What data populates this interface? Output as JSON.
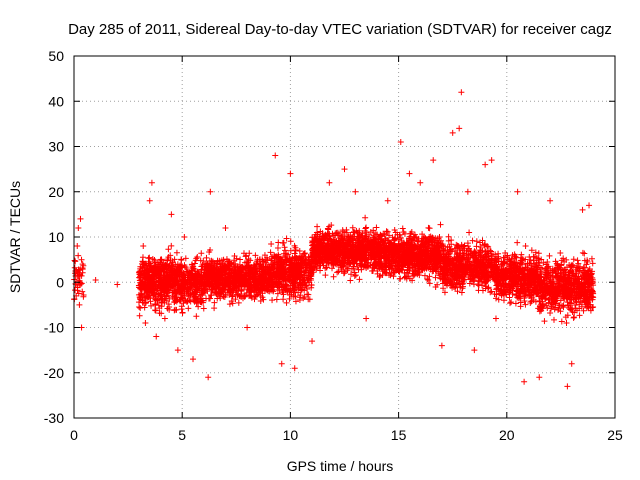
{
  "chart_data": {
    "type": "scatter",
    "title": "Day 285 of 2011, Sidereal Day-to-day VTEC variation (SDTVAR) for receiver cagz",
    "xlabel": "GPS time / hours",
    "ylabel": "SDTVAR / TECUs",
    "xlim": [
      0,
      25
    ],
    "ylim": [
      -30,
      50
    ],
    "xticks": [
      0,
      5,
      10,
      15,
      20,
      25
    ],
    "yticks": [
      -30,
      -20,
      -10,
      0,
      10,
      20,
      30,
      40,
      50
    ],
    "grid": true,
    "marker": "+",
    "color": "#ff0000",
    "series": [
      {
        "name": "SDTVAR",
        "points": [
          [
            0.05,
            2
          ],
          [
            0.1,
            -3
          ],
          [
            0.15,
            8
          ],
          [
            0.2,
            12
          ],
          [
            0.25,
            -5
          ],
          [
            0.3,
            14
          ],
          [
            0.35,
            -10
          ],
          [
            0.4,
            4
          ],
          [
            3.2,
            8
          ],
          [
            3.3,
            -9
          ],
          [
            3.5,
            18
          ],
          [
            3.6,
            22
          ],
          [
            3.8,
            -12
          ],
          [
            4.0,
            5
          ],
          [
            4.2,
            -8
          ],
          [
            4.5,
            15
          ],
          [
            4.8,
            -15
          ],
          [
            5.1,
            10
          ],
          [
            5.5,
            -17
          ],
          [
            6.2,
            -21
          ],
          [
            6.3,
            20
          ],
          [
            7.0,
            12
          ],
          [
            8.0,
            -10
          ],
          [
            9.3,
            28
          ],
          [
            9.6,
            -18
          ],
          [
            10.0,
            24
          ],
          [
            10.2,
            -19
          ],
          [
            11.0,
            -13
          ],
          [
            11.8,
            22
          ],
          [
            12.5,
            25
          ],
          [
            13.0,
            20
          ],
          [
            13.5,
            -8
          ],
          [
            14.5,
            18
          ],
          [
            15.1,
            31
          ],
          [
            15.5,
            24
          ],
          [
            16.0,
            22
          ],
          [
            16.6,
            27
          ],
          [
            17.0,
            -14
          ],
          [
            17.5,
            33
          ],
          [
            17.8,
            34
          ],
          [
            17.9,
            42
          ],
          [
            18.2,
            20
          ],
          [
            18.5,
            -15
          ],
          [
            19.0,
            26
          ],
          [
            19.3,
            27
          ],
          [
            19.5,
            -8
          ],
          [
            20.5,
            20
          ],
          [
            20.8,
            -22
          ],
          [
            21.5,
            -21
          ],
          [
            22.0,
            18
          ],
          [
            22.8,
            -23
          ],
          [
            23.0,
            -18
          ],
          [
            23.5,
            16
          ],
          [
            23.8,
            17
          ],
          [
            1.0,
            0.5
          ],
          [
            2.0,
            -0.5
          ]
        ]
      }
    ],
    "density_profile": [
      {
        "x": [
          0.0,
          0.45
        ],
        "center": 1.0,
        "spread": 7,
        "count": 40
      },
      {
        "x": [
          3.0,
          6.0
        ],
        "center": 0.0,
        "spread": 6,
        "count": 900
      },
      {
        "x": [
          6.0,
          9.0
        ],
        "center": 1.0,
        "spread": 5,
        "count": 800
      },
      {
        "x": [
          9.0,
          11.0
        ],
        "center": 2.0,
        "spread": 6,
        "count": 550
      },
      {
        "x": [
          11.0,
          14.0
        ],
        "center": 7.0,
        "spread": 5,
        "count": 900
      },
      {
        "x": [
          14.0,
          17.0
        ],
        "center": 6.0,
        "spread": 5.5,
        "count": 900
      },
      {
        "x": [
          17.0,
          19.5
        ],
        "center": 3.5,
        "spread": 5.5,
        "count": 650
      },
      {
        "x": [
          19.5,
          21.5
        ],
        "center": 1.0,
        "spread": 6,
        "count": 550
      },
      {
        "x": [
          21.5,
          24.0
        ],
        "center": -1.0,
        "spread": 6.5,
        "count": 700
      }
    ]
  }
}
